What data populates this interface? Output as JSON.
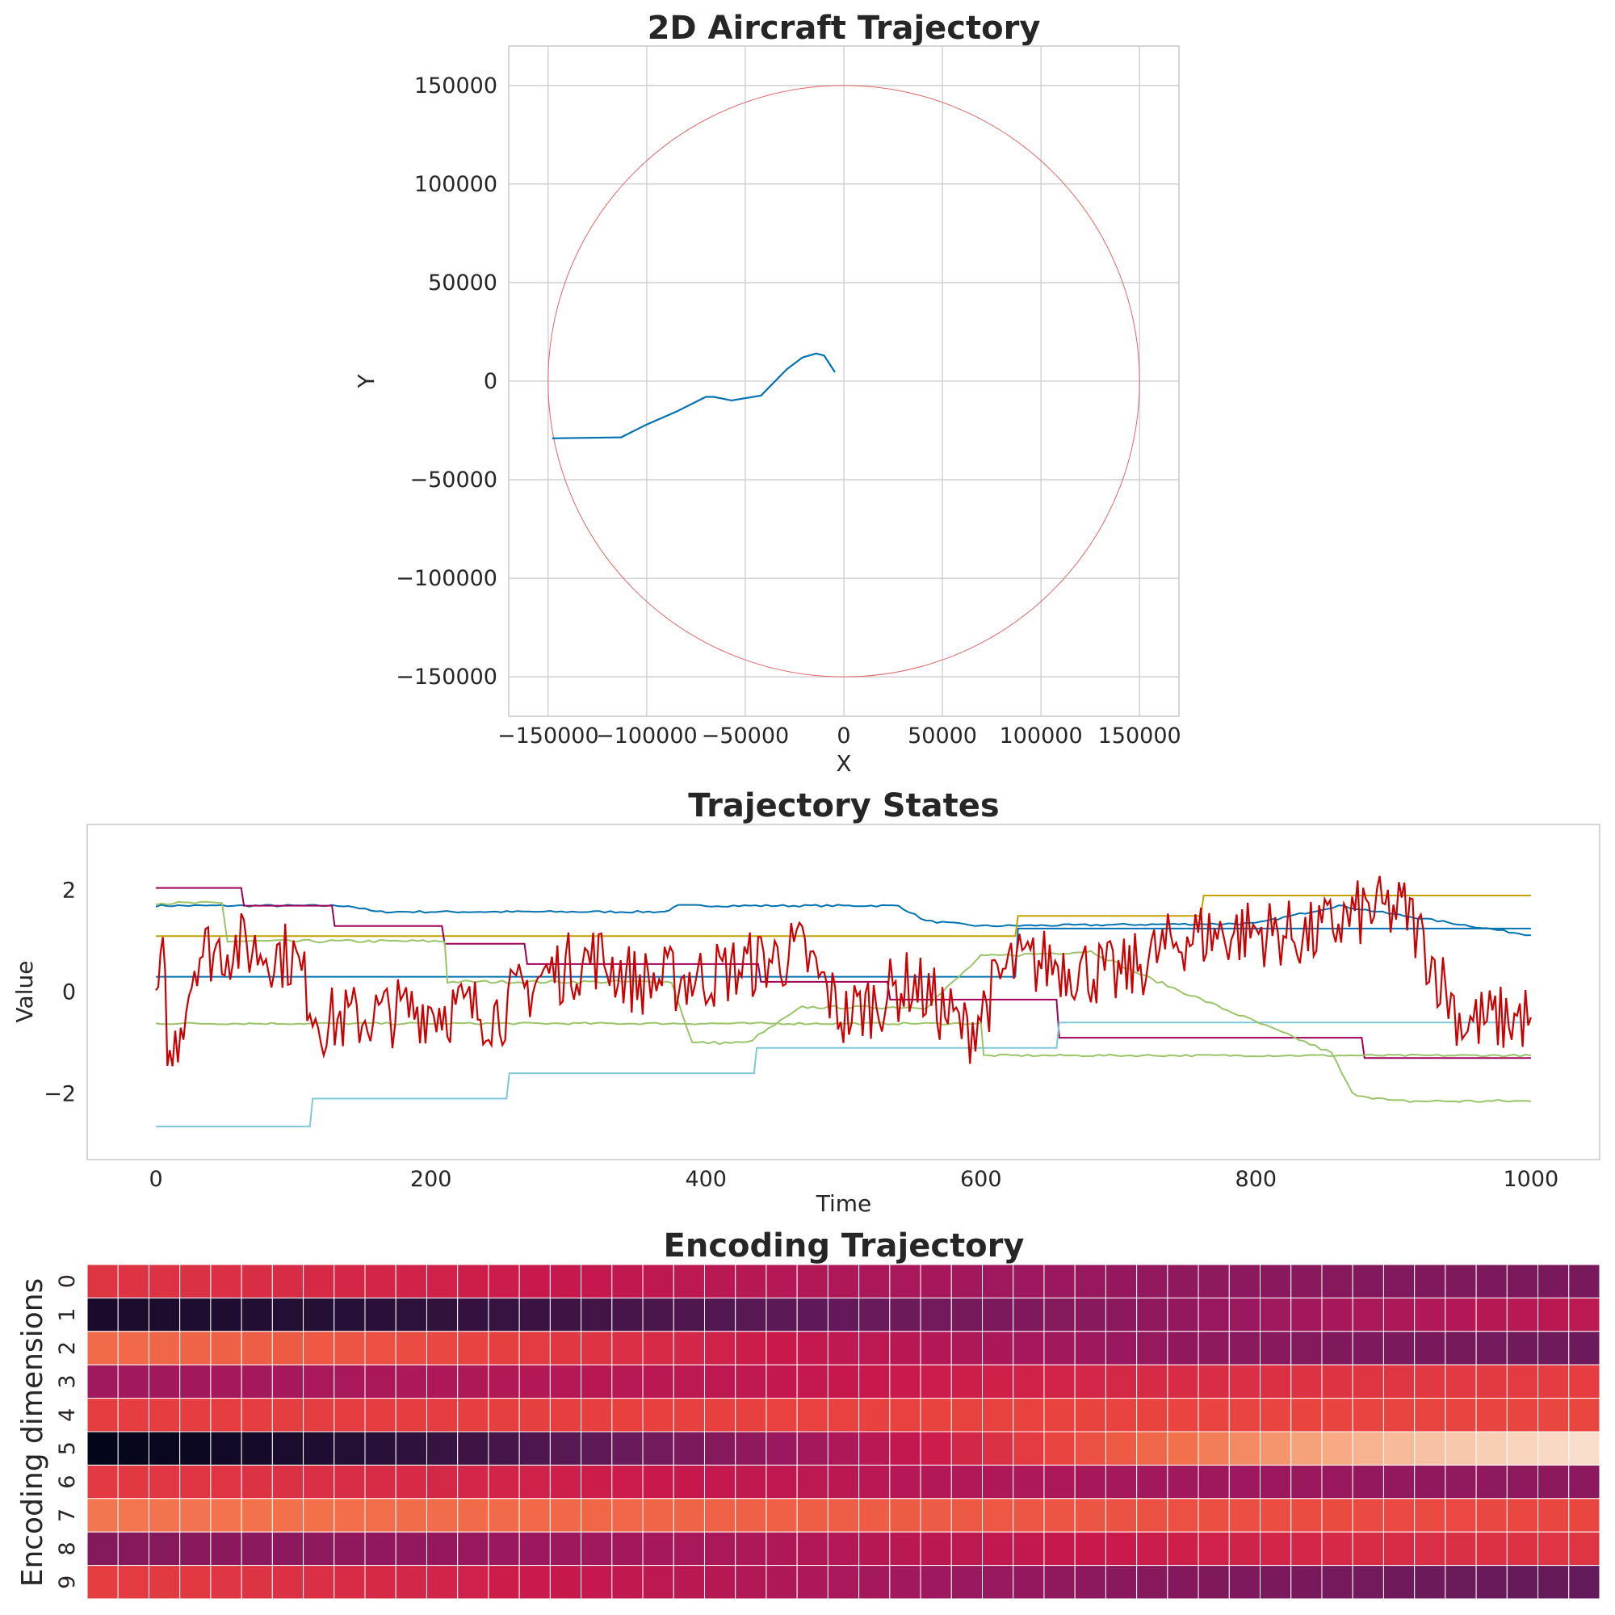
{
  "chart_data": [
    {
      "type": "line",
      "title": "2D Aircraft Trajectory",
      "xlabel": "X",
      "ylabel": "Y",
      "xlim": [
        -170000,
        170000
      ],
      "ylim": [
        -170000,
        170000
      ],
      "x_ticks": [
        -150000,
        -100000,
        -50000,
        0,
        50000,
        100000,
        150000
      ],
      "y_ticks": [
        -150000,
        -100000,
        -50000,
        0,
        50000,
        100000,
        150000
      ],
      "x_tick_labels": [
        "−150000",
        "−100000",
        "−50000",
        "0",
        "50000",
        "100000",
        "150000"
      ],
      "y_tick_labels": [
        "−150000",
        "−100000",
        "−50000",
        "0",
        "50000",
        "100000",
        "150000"
      ],
      "grid": true,
      "boundary_circle": {
        "center": [
          0,
          0
        ],
        "radius": 150000,
        "color": "#e06666"
      },
      "series": [
        {
          "color": "#0072b2",
          "x": [
            -148000,
            -113000,
            -100000,
            -85000,
            -70000,
            -66000,
            -57000,
            -42000,
            -29000,
            -21000,
            -14000,
            -10000,
            -4500
          ],
          "y": [
            -29000,
            -28500,
            -22000,
            -15500,
            -8000,
            -8000,
            -9800,
            -7300,
            6000,
            12000,
            14000,
            13000,
            4500
          ]
        }
      ]
    },
    {
      "type": "line",
      "title": "Trajectory States",
      "xlabel": "Time",
      "ylabel": "Value",
      "xlim": [
        -50,
        1050
      ],
      "ylim": [
        -3.3,
        3.3
      ],
      "x_ticks": [
        0,
        200,
        400,
        600,
        800,
        1000
      ],
      "y_ticks": [
        -2,
        0,
        2
      ],
      "x_tick_labels": [
        "0",
        "200",
        "400",
        "600",
        "800",
        "1000"
      ],
      "y_tick_labels": [
        "−2",
        "0",
        "2"
      ],
      "grid": false,
      "series": [
        {
          "color": "#0072b2",
          "x": [
            0,
            140,
            160,
            370,
            380,
            540,
            560,
            600,
            800,
            860,
            1000
          ],
          "y": [
            1.7,
            1.7,
            1.58,
            1.58,
            1.7,
            1.7,
            1.4,
            1.3,
            1.35,
            1.7,
            1.12
          ],
          "noise": 0.02
        },
        {
          "color": "#0072b2",
          "x": [
            0,
            625,
            627,
            1000
          ],
          "y": [
            0.3,
            0.3,
            1.25,
            1.25
          ],
          "noise": 0
        },
        {
          "color": "#c4a000",
          "x": [
            0,
            625,
            627,
            760,
            762,
            1000
          ],
          "y": [
            1.1,
            1.1,
            1.5,
            1.5,
            1.9,
            1.9
          ],
          "noise": 0
        },
        {
          "color": "#9e0059",
          "x": [
            0,
            62,
            64,
            128,
            130,
            208,
            210,
            268,
            270,
            438,
            440,
            532,
            534,
            655,
            657,
            877,
            879,
            1000
          ],
          "y": [
            2.05,
            2.05,
            1.7,
            1.7,
            1.3,
            1.3,
            0.95,
            0.95,
            0.55,
            0.55,
            0.2,
            0.2,
            -0.15,
            -0.15,
            -0.9,
            -0.9,
            -1.3,
            -1.3
          ],
          "noise": 0
        },
        {
          "color": "#7ec8d8",
          "x": [
            0,
            112,
            114,
            255,
            257,
            435,
            437,
            655,
            657,
            1000
          ],
          "y": [
            -2.65,
            -2.65,
            -2.1,
            -2.1,
            -1.6,
            -1.6,
            -1.1,
            -1.1,
            -0.6,
            -0.6
          ],
          "noise": 0
        },
        {
          "color": "#9ac46a",
          "x": [
            0,
            48,
            52,
            210,
            212,
            375,
            390,
            430,
            470,
            560,
            600,
            680,
            720,
            855,
            870,
            900,
            1000
          ],
          "y": [
            1.75,
            1.75,
            1.0,
            1.0,
            0.2,
            0.2,
            -1.0,
            -1.0,
            -0.3,
            -0.3,
            0.7,
            0.8,
            0.3,
            -1.2,
            -2.0,
            -2.15,
            -2.15
          ],
          "noise": 0.03
        },
        {
          "color": "#9ac46a",
          "x": [
            0,
            600,
            602,
            1000
          ],
          "y": [
            -0.62,
            -0.62,
            -1.25,
            -1.25
          ],
          "noise": 0.02
        },
        {
          "color": "#cc0000",
          "x": [
            0,
            5,
            10,
            30,
            60,
            100,
            120,
            150,
            200,
            250,
            280,
            320,
            350,
            400,
            440,
            470,
            500,
            550,
            590,
            620,
            650,
            700,
            750,
            800,
            840,
            880,
            910,
            950,
            1000
          ],
          "y": [
            -0.2,
            0.5,
            -1.5,
            0.8,
            0.9,
            0.7,
            -0.6,
            -0.5,
            -0.3,
            -0.4,
            0.3,
            0.7,
            0.2,
            0.3,
            0.6,
            0.8,
            -0.5,
            0.2,
            -0.8,
            0.5,
            0.6,
            0.3,
            1.1,
            1.2,
            1.1,
            1.6,
            1.6,
            -0.6,
            -0.5
          ],
          "noise": 0.7
        }
      ]
    },
    {
      "type": "heatmap",
      "title": "Encoding Trajectory",
      "ylabel": "Encoding dimensions",
      "row_labels": [
        "0",
        "1",
        "2",
        "3",
        "4",
        "5",
        "6",
        "7",
        "8",
        "9"
      ],
      "n_cols": 49,
      "colormap": "rocket",
      "rows": [
        {
          "start": 0.62,
          "end": 0.35
        },
        {
          "start": 0.08,
          "end": 0.52
        },
        {
          "start": 0.74,
          "end": 0.32
        },
        {
          "start": 0.45,
          "end": 0.64
        },
        {
          "start": 0.64,
          "end": 0.66
        },
        {
          "start": 0.0,
          "end": 0.97
        },
        {
          "start": 0.63,
          "end": 0.4
        },
        {
          "start": 0.76,
          "end": 0.66
        },
        {
          "start": 0.38,
          "end": 0.62
        },
        {
          "start": 0.64,
          "end": 0.3
        }
      ]
    }
  ]
}
